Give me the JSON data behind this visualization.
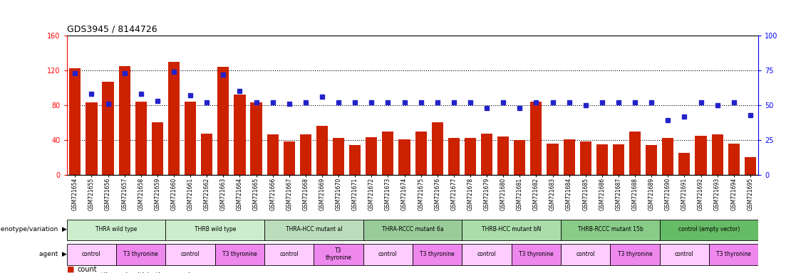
{
  "title": "GDS3945 / 8144726",
  "categories": [
    "GSM721654",
    "GSM721655",
    "GSM721656",
    "GSM721657",
    "GSM721658",
    "GSM721659",
    "GSM721660",
    "GSM721661",
    "GSM721662",
    "GSM721663",
    "GSM721664",
    "GSM721665",
    "GSM721666",
    "GSM721667",
    "GSM721668",
    "GSM721669",
    "GSM721670",
    "GSM721671",
    "GSM721672",
    "GSM721673",
    "GSM721674",
    "GSM721675",
    "GSM721676",
    "GSM721677",
    "GSM721678",
    "GSM721679",
    "GSM721680",
    "GSM721681",
    "GSM721682",
    "GSM721683",
    "GSM721684",
    "GSM721685",
    "GSM721686",
    "GSM721687",
    "GSM721688",
    "GSM721689",
    "GSM721690",
    "GSM721691",
    "GSM721692",
    "GSM721693",
    "GSM721694",
    "GSM721695"
  ],
  "bar_values": [
    122,
    83,
    107,
    125,
    84,
    60,
    130,
    84,
    47,
    124,
    92,
    83,
    46,
    38,
    46,
    56,
    42,
    34,
    43,
    50,
    41,
    50,
    60,
    42,
    42,
    47,
    44,
    40,
    84,
    36,
    41,
    38,
    35,
    35,
    50,
    34,
    42,
    25,
    45,
    46,
    36,
    20
  ],
  "dot_values_pct": [
    73,
    58,
    51,
    73,
    58,
    53,
    74,
    57,
    52,
    72,
    60,
    52,
    52,
    51,
    52,
    56,
    52,
    52,
    52,
    52,
    52,
    52,
    52,
    52,
    52,
    48,
    52,
    48,
    52,
    52,
    52,
    50,
    52,
    52,
    52,
    52,
    39,
    42,
    52,
    50,
    52,
    43
  ],
  "ylim_left": [
    0,
    160
  ],
  "ylim_right": [
    0,
    100
  ],
  "yticks_left": [
    0,
    40,
    80,
    120,
    160
  ],
  "yticks_right": [
    0,
    25,
    50,
    75,
    100
  ],
  "bar_color": "#CC2200",
  "dot_color": "#2222CC",
  "grid_yticks": [
    40,
    80,
    120
  ],
  "bg_color": "#FFFFFF",
  "genotype_groups": [
    {
      "label": "THRA wild type",
      "start": 0,
      "end": 6,
      "color": "#CCEECC"
    },
    {
      "label": "THRB wild type",
      "start": 6,
      "end": 12,
      "color": "#CCEECC"
    },
    {
      "label": "THRA-HCC mutant al",
      "start": 12,
      "end": 18,
      "color": "#BBDDBB"
    },
    {
      "label": "THRA-RCCC mutant 6a",
      "start": 18,
      "end": 24,
      "color": "#99CC99"
    },
    {
      "label": "THRB-HCC mutant bN",
      "start": 24,
      "end": 30,
      "color": "#AADDAA"
    },
    {
      "label": "THRB-RCCC mutant 15b",
      "start": 30,
      "end": 36,
      "color": "#88CC88"
    },
    {
      "label": "control (empty vector)",
      "start": 36,
      "end": 42,
      "color": "#66BB66"
    }
  ],
  "agent_groups": [
    {
      "label": "control",
      "start": 0,
      "end": 3,
      "color": "#FFCCFF"
    },
    {
      "label": "T3 thyronine",
      "start": 3,
      "end": 6,
      "color": "#EE88EE"
    },
    {
      "label": "control",
      "start": 6,
      "end": 9,
      "color": "#FFCCFF"
    },
    {
      "label": "T3 thyronine",
      "start": 9,
      "end": 12,
      "color": "#EE88EE"
    },
    {
      "label": "control",
      "start": 12,
      "end": 15,
      "color": "#FFCCFF"
    },
    {
      "label": "T3\nthyronine",
      "start": 15,
      "end": 18,
      "color": "#EE88EE"
    },
    {
      "label": "control",
      "start": 18,
      "end": 21,
      "color": "#FFCCFF"
    },
    {
      "label": "T3 thyronine",
      "start": 21,
      "end": 24,
      "color": "#EE88EE"
    },
    {
      "label": "control",
      "start": 24,
      "end": 27,
      "color": "#FFCCFF"
    },
    {
      "label": "T3 thyronine",
      "start": 27,
      "end": 30,
      "color": "#EE88EE"
    },
    {
      "label": "control",
      "start": 30,
      "end": 33,
      "color": "#FFCCFF"
    },
    {
      "label": "T3 thyronine",
      "start": 33,
      "end": 36,
      "color": "#EE88EE"
    },
    {
      "label": "control",
      "start": 36,
      "end": 39,
      "color": "#FFCCFF"
    },
    {
      "label": "T3 thyronine",
      "start": 39,
      "end": 42,
      "color": "#EE88EE"
    }
  ],
  "legend_count_color": "#CC2200",
  "legend_pct_color": "#2222CC",
  "left_label_geno": "genotype/variation",
  "left_label_agent": "agent"
}
